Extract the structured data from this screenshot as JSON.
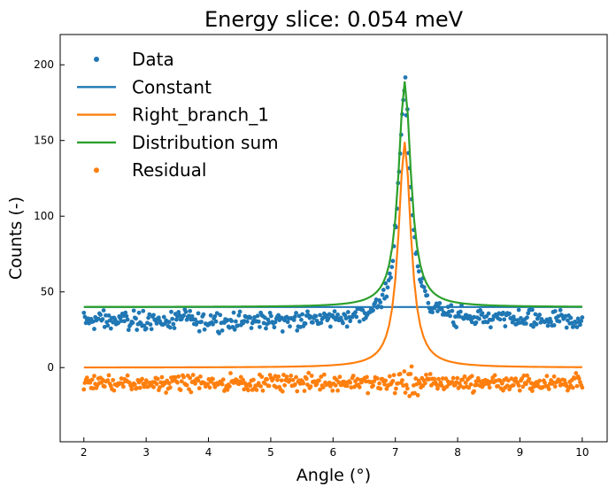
{
  "chart_data": {
    "type": "line",
    "title": "Energy slice: 0.054 meV",
    "xlabel": "Angle (°)",
    "ylabel": "Counts (-)",
    "xlim": [
      1.62,
      10.4
    ],
    "ylim": [
      -49,
      220
    ],
    "xticks": [
      2,
      3,
      4,
      5,
      6,
      7,
      8,
      9,
      10
    ],
    "yticks": [
      0,
      50,
      100,
      150,
      200
    ],
    "grid": false,
    "legend_position": "top-left",
    "model": {
      "peak_center": 7.15,
      "peak_amplitude": 149,
      "peak_hwhm": 0.12,
      "constant": 40,
      "data_offset": 31,
      "residual_offset": -10,
      "x_start": 2.0,
      "x_end": 10.0,
      "sample_points": 160
    },
    "series": [
      {
        "name": "Data",
        "kind": "scatter",
        "color": "#1f77b4"
      },
      {
        "name": "Constant",
        "kind": "line",
        "color": "#1f77b4"
      },
      {
        "name": "Right_branch_1",
        "kind": "line",
        "color": "#ff7f0e"
      },
      {
        "name": "Distribution sum",
        "kind": "line",
        "color": "#2ca02c"
      },
      {
        "name": "Residual",
        "kind": "scatter",
        "color": "#ff7f0e"
      }
    ]
  }
}
